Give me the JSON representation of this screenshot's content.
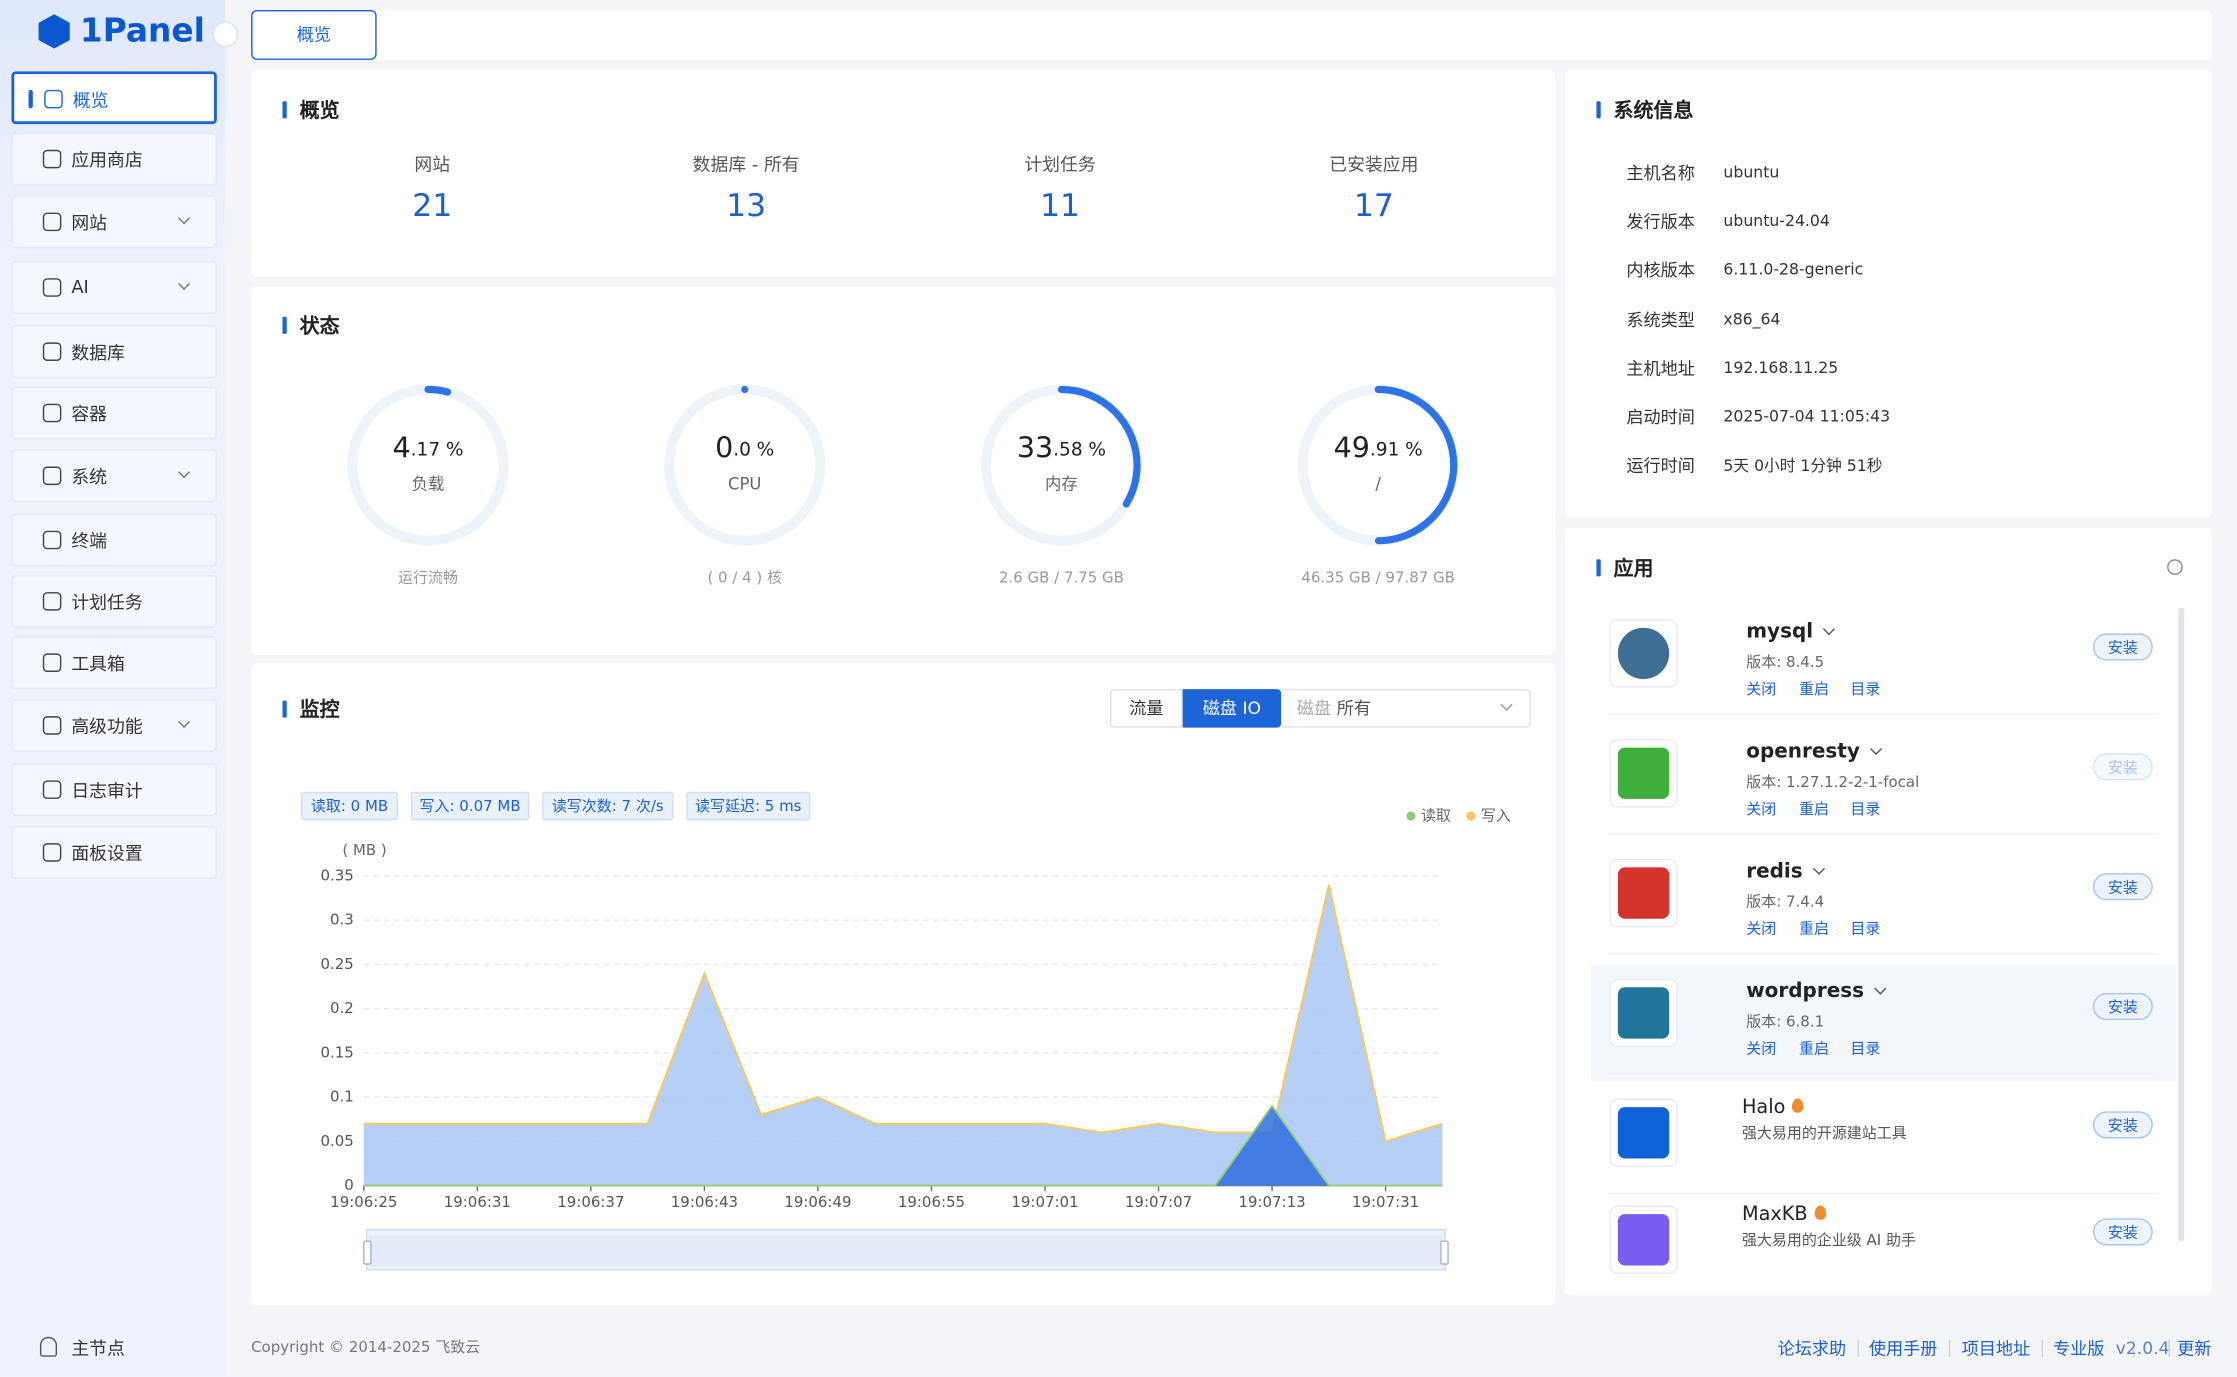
{
  "sidebar": {
    "logo": "1Panel",
    "menu": [
      "概览",
      "应用商店",
      "网站",
      "AI",
      "数据库",
      "容器",
      "系统",
      "终端",
      "计划任务",
      "工具箱",
      "高级功能",
      "日志审计",
      "面板设置"
    ],
    "active": 0,
    "node": "主节点"
  },
  "tab": "概览",
  "overview": {
    "title": "概览",
    "items": [
      {
        "label": "网站",
        "value": 21
      },
      {
        "label": "数据库 - 所有",
        "value": 13
      },
      {
        "label": "计划任务",
        "value": 11
      },
      {
        "label": "已安装应用",
        "value": 17
      }
    ]
  },
  "status": {
    "title": "状态",
    "gauges": [
      {
        "value": 4.17,
        "int_label": "4",
        "dec_label": ".17",
        "unit": "%",
        "name": "负载",
        "detail": "运行流畅"
      },
      {
        "value": 0,
        "int_label": "0",
        "dec_label": ".0",
        "unit": "%",
        "name": "CPU",
        "detail": "( 0 / 4 ) 核"
      },
      {
        "value": 33.58,
        "int_label": "33",
        "dec_label": ".58",
        "unit": "%",
        "name": "内存",
        "detail": "2.6 GB / 7.75 GB"
      },
      {
        "value": 49.91,
        "int_label": "49",
        "dec_label": ".91",
        "unit": "%",
        "name": "/",
        "detail": "46.35 GB / 97.87 GB"
      }
    ]
  },
  "monitor": {
    "title": "监控",
    "tabs": [
      "流量",
      "磁盘 IO"
    ],
    "active_tab": 1,
    "select_label": "磁盘",
    "select_value": "所有",
    "badges": [
      "读取: 0 MB",
      "写入: 0.07 MB",
      "读写次数: 7 次/s",
      "读写延迟: 5 ms"
    ]
  },
  "chart_data": {
    "type": "area",
    "y_unit_label": "( MB )",
    "categories": [
      "19:06:25",
      null,
      "19:06:31",
      null,
      "19:06:37",
      null,
      "19:06:43",
      null,
      "19:06:49",
      null,
      "19:06:55",
      null,
      "19:07:01",
      null,
      "19:07:07",
      null,
      "19:07:13",
      null,
      "19:07:31",
      null
    ],
    "series": [
      {
        "name": "读取",
        "color": "#91cc75",
        "area_color": "#2f6fe0",
        "values": [
          0,
          0,
          0,
          0,
          0,
          0,
          0,
          0,
          0,
          0,
          0,
          0,
          0,
          0,
          0,
          0,
          0.09,
          0,
          0,
          0
        ]
      },
      {
        "name": "写入",
        "color": "#fac858",
        "area_color": "#a9c7f4",
        "values": [
          0.07,
          0.07,
          0.07,
          0.07,
          0.07,
          0.07,
          0.24,
          0.08,
          0.1,
          0.07,
          0.07,
          0.07,
          0.07,
          0.06,
          0.07,
          0.06,
          0.06,
          0.34,
          0.05,
          0.07
        ]
      }
    ],
    "ylim": [
      0,
      0.35
    ],
    "yticks": [
      0,
      0.05,
      0.1,
      0.15,
      0.2,
      0.25,
      0.3,
      0.35
    ],
    "grid": true
  },
  "sysinfo": {
    "title": "系统信息",
    "rows": [
      [
        "主机名称",
        "ubuntu"
      ],
      [
        "发行版本",
        "ubuntu-24.04"
      ],
      [
        "内核版本",
        "6.11.0-28-generic"
      ],
      [
        "系统类型",
        "x86_64"
      ],
      [
        "主机地址",
        "192.168.11.25"
      ],
      [
        "启动时间",
        "2025-07-04 11:05:43"
      ],
      [
        "运行时间",
        "5天 0小时 1分钟 51秒"
      ]
    ]
  },
  "apps": {
    "title": "应用",
    "items": [
      {
        "name": "mysql",
        "version": "版本: 8.4.5",
        "actions": [
          "关闭",
          "重启",
          "目录"
        ],
        "button": "安装",
        "icon_color": "#3e6e93"
      },
      {
        "name": "openresty",
        "version": "版本: 1.27.1.2-2-1-focal",
        "actions": [
          "关闭",
          "重启",
          "目录"
        ],
        "button": "安装",
        "button_disabled": true,
        "icon_color": "#3fae3a"
      },
      {
        "name": "redis",
        "version": "版本: 7.4.4",
        "actions": [
          "关闭",
          "重启",
          "目录"
        ],
        "button": "安装",
        "icon_color": "#d4342c"
      },
      {
        "name": "wordpress",
        "version": "版本: 6.8.1",
        "actions": [
          "关闭",
          "重启",
          "目录"
        ],
        "button": "安装",
        "icon_color": "#21759b",
        "highlight": true
      },
      {
        "name": "Halo",
        "desc": "强大易用的开源建站工具",
        "button": "安装",
        "icon_color": "#1062d8"
      },
      {
        "name": "MaxKB",
        "desc": "强大易用的企业级 AI 助手",
        "button": "安装",
        "icon_color": "#7b5cf0"
      }
    ]
  },
  "footer": {
    "copyright": "Copyright © 2014-2025 飞致云",
    "links": [
      "论坛求助",
      "使用手册",
      "项目地址",
      "专业版"
    ],
    "version": "v2.0.4",
    "update": "更新"
  }
}
